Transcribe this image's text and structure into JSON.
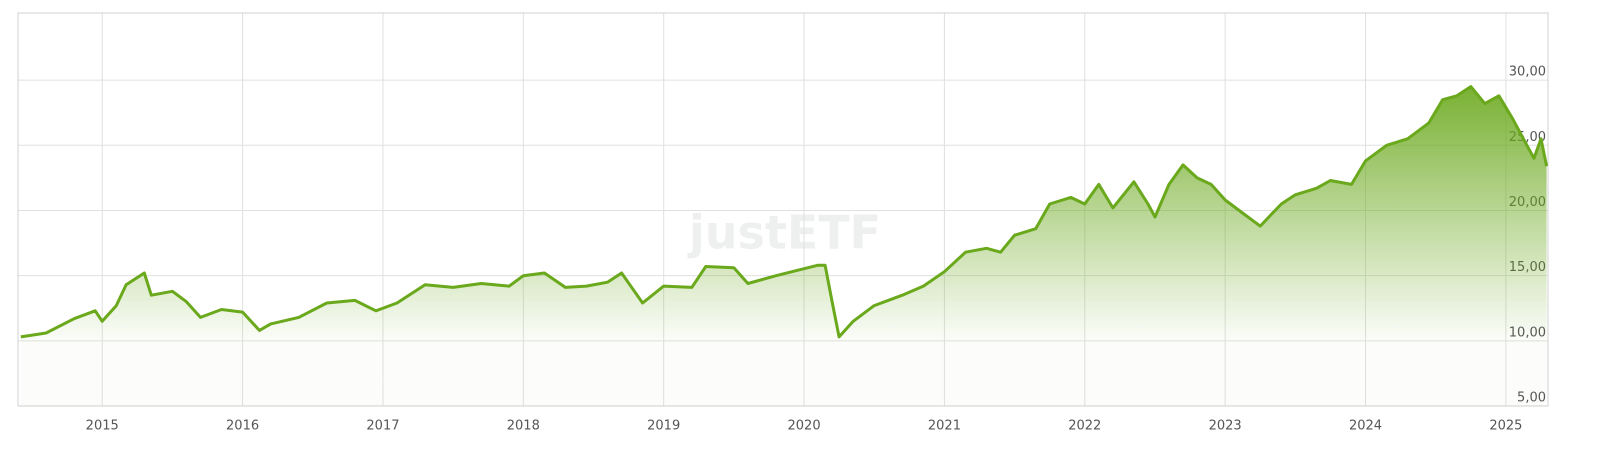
{
  "chart_data": {
    "type": "line",
    "watermark": "justETF",
    "x": [
      2014.42,
      2014.6,
      2014.8,
      2014.95,
      2015.0,
      2015.1,
      2015.17,
      2015.3,
      2015.35,
      2015.5,
      2015.6,
      2015.7,
      2015.85,
      2016.0,
      2016.12,
      2016.2,
      2016.4,
      2016.6,
      2016.8,
      2016.95,
      2017.1,
      2017.3,
      2017.5,
      2017.7,
      2017.9,
      2018.0,
      2018.15,
      2018.3,
      2018.45,
      2018.6,
      2018.7,
      2018.85,
      2019.0,
      2019.2,
      2019.3,
      2019.5,
      2019.6,
      2019.8,
      2019.95,
      2020.1,
      2020.15,
      2020.2,
      2020.25,
      2020.35,
      2020.5,
      2020.7,
      2020.85,
      2021.0,
      2021.15,
      2021.3,
      2021.4,
      2021.5,
      2021.65,
      2021.75,
      2021.9,
      2022.0,
      2022.1,
      2022.2,
      2022.35,
      2022.45,
      2022.5,
      2022.6,
      2022.7,
      2022.8,
      2022.9,
      2023.0,
      2023.1,
      2023.25,
      2023.4,
      2023.5,
      2023.65,
      2023.75,
      2023.9,
      2024.0,
      2024.15,
      2024.3,
      2024.45,
      2024.55,
      2024.65,
      2024.75,
      2024.85,
      2024.95,
      2025.05,
      2025.15,
      2025.2,
      2025.25,
      2025.29
    ],
    "series": [
      {
        "color": "#6aa81c",
        "values": [
          10.3,
          10.6,
          11.7,
          12.3,
          11.5,
          12.7,
          14.3,
          15.2,
          13.5,
          13.8,
          13.0,
          11.8,
          12.4,
          12.2,
          10.8,
          11.3,
          11.8,
          12.9,
          13.1,
          12.3,
          12.9,
          14.3,
          14.1,
          14.4,
          14.2,
          15.0,
          15.2,
          14.1,
          14.2,
          14.5,
          15.2,
          12.9,
          14.2,
          14.1,
          15.7,
          15.6,
          14.4,
          15.0,
          15.4,
          15.8,
          15.8,
          13.0,
          10.3,
          11.5,
          12.7,
          13.5,
          14.2,
          15.3,
          16.8,
          17.1,
          16.8,
          18.1,
          18.6,
          20.5,
          21.0,
          20.5,
          22.0,
          20.2,
          22.2,
          20.5,
          19.5,
          22.0,
          23.5,
          22.5,
          22.0,
          20.8,
          20.0,
          18.8,
          20.5,
          21.2,
          21.7,
          22.3,
          22.0,
          23.8,
          25.0,
          25.5,
          26.7,
          28.5,
          28.8,
          29.5,
          28.2,
          28.8,
          27.0,
          25.0,
          24.0,
          25.5,
          23.4
        ]
      }
    ],
    "xlim": [
      2014.4,
      2025.3
    ],
    "xticks": [
      2015,
      2016,
      2017,
      2018,
      2019,
      2020,
      2021,
      2022,
      2023,
      2024,
      2025
    ],
    "ylim": [
      5,
      35.15
    ],
    "yticks": [
      {
        "value": 5,
        "label": "5,00"
      },
      {
        "value": 10,
        "label": "10,00"
      },
      {
        "value": 15,
        "label": "15,00"
      },
      {
        "value": 20,
        "label": "20,00"
      },
      {
        "value": 25,
        "label": "25,00"
      },
      {
        "value": 30,
        "label": "30,00"
      }
    ],
    "grid": true
  }
}
